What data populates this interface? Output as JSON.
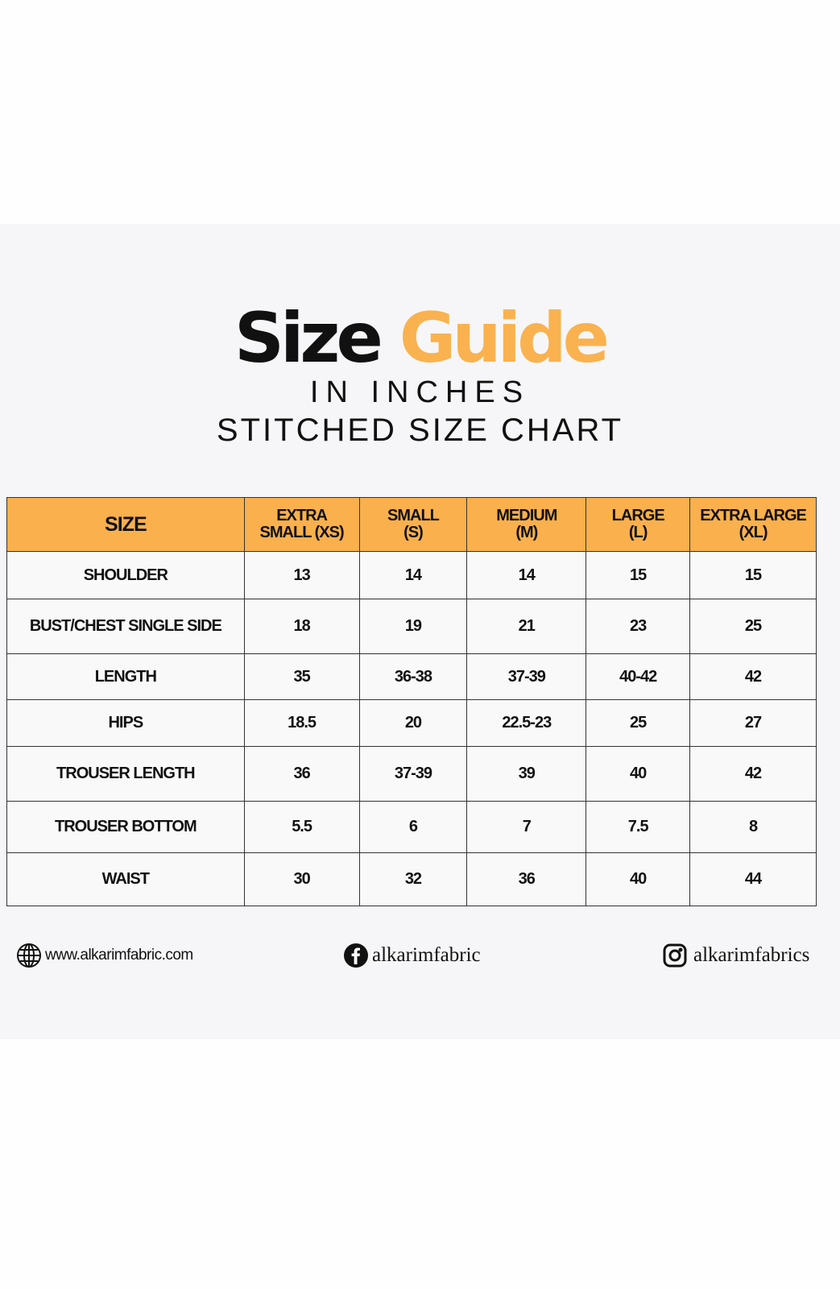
{
  "title": {
    "part1": "Size",
    "part2": "Guide",
    "accent_color": "#f9b24f"
  },
  "subtitle": "IN INCHES",
  "chart_title": "STITCHED SIZE CHART",
  "table": {
    "header_color": "#f9b04d",
    "headers": [
      [
        "SIZE"
      ],
      [
        "EXTRA",
        "SMALL (XS)"
      ],
      [
        "SMALL",
        "(S)"
      ],
      [
        "MEDIUM",
        "(M)"
      ],
      [
        "LARGE",
        "(L)"
      ],
      [
        "EXTRA LARGE",
        "(XL)"
      ]
    ],
    "rows": [
      [
        "SHOULDER",
        "13",
        "14",
        "14",
        "15",
        "15"
      ],
      [
        "BUST/CHEST SINGLE SIDE",
        "18",
        "19",
        "21",
        "23",
        "25"
      ],
      [
        "LENGTH",
        "35",
        "36-38",
        "37-39",
        "40-42",
        "42"
      ],
      [
        "HIPS",
        "18.5",
        "20",
        "22.5-23",
        "25",
        "27"
      ],
      [
        "TROUSER LENGTH",
        "36",
        "37-39",
        "39",
        "40",
        "42"
      ],
      [
        "TROUSER BOTTOM",
        "5.5",
        "6",
        "7",
        "7.5",
        "8"
      ],
      [
        "WAIST",
        "30",
        "32",
        "36",
        "40",
        "44"
      ]
    ]
  },
  "footer": {
    "website": {
      "icon": "globe-icon",
      "text": "www.alkarimfabric.com"
    },
    "facebook": {
      "icon": "facebook-icon",
      "text": "alkarimfabric"
    },
    "instagram": {
      "icon": "instagram-icon",
      "text": "alkarimfabrics"
    }
  }
}
